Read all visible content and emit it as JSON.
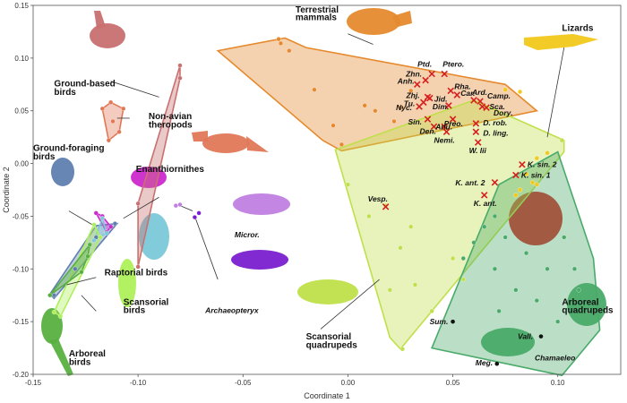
{
  "chart_data": {
    "type": "scatter",
    "xlabel": "Coordinate 1",
    "ylabel": "Coordinate 2",
    "xlim": [
      -0.15,
      0.13
    ],
    "ylim": [
      -0.2,
      0.15
    ],
    "xticks": [
      "-0.15",
      "-0.10",
      "-0.05",
      "0.00",
      "0.05",
      "0.10"
    ],
    "xtick_values": [
      -0.15,
      -0.1,
      -0.05,
      0.0,
      0.05,
      0.1
    ],
    "yticks": [
      "0.15",
      "0.10",
      "0.05",
      "0.00",
      "-0.05",
      "-0.10",
      "-0.15",
      "-0.20"
    ],
    "ytick_values": [
      0.15,
      0.1,
      0.05,
      0.0,
      -0.05,
      -0.1,
      -0.15,
      -0.2
    ],
    "groups": [
      {
        "name": "Terrestrial mammals",
        "color": "#e58a2e",
        "hull": [
          [
            -0.062,
            0.107
          ],
          [
            -0.03,
            0.119
          ],
          [
            -0.02,
            0.11
          ],
          [
            0.075,
            0.075
          ],
          [
            0.09,
            0.05
          ],
          [
            -0.003,
            0.012
          ],
          [
            -0.012,
            0.022
          ]
        ],
        "points": [
          [
            -0.033,
            0.118
          ],
          [
            -0.032,
            0.114
          ],
          [
            -0.028,
            0.107
          ],
          [
            -0.016,
            0.07
          ],
          [
            -0.007,
            0.036
          ],
          [
            -0.003,
            0.018
          ],
          [
            0.008,
            0.055
          ],
          [
            0.013,
            0.05
          ],
          [
            0.022,
            0.04
          ],
          [
            0.025,
            0.053
          ],
          [
            0.03,
            0.069
          ]
        ]
      },
      {
        "name": "Lizards",
        "color": "#f2c81a",
        "hull": [],
        "points": [
          [
            0.075,
            0.07
          ],
          [
            0.082,
            0.068
          ],
          [
            0.09,
            0.005
          ],
          [
            0.085,
            -0.01
          ],
          [
            0.088,
            -0.018
          ],
          [
            0.082,
            -0.025
          ],
          [
            0.08,
            -0.03
          ],
          [
            0.09,
            -0.02
          ],
          [
            0.095,
            0.01
          ]
        ]
      },
      {
        "name": "Scansorial quadrupeds",
        "color": "#bfe04a",
        "hull": [
          [
            -0.006,
            0.013
          ],
          [
            0.06,
            0.06
          ],
          [
            0.103,
            0.022
          ],
          [
            0.103,
            0.011
          ],
          [
            0.025,
            -0.176
          ],
          [
            0.02,
            -0.165
          ]
        ],
        "points": [
          [
            0.018,
            -0.04
          ],
          [
            0.0,
            -0.02
          ],
          [
            0.01,
            -0.05
          ],
          [
            0.025,
            -0.08
          ],
          [
            0.03,
            -0.06
          ],
          [
            0.02,
            -0.12
          ],
          [
            0.032,
            -0.115
          ],
          [
            0.05,
            -0.09
          ],
          [
            0.055,
            -0.11
          ],
          [
            0.04,
            -0.14
          ],
          [
            0.026,
            -0.176
          ],
          [
            0.102,
            0.022
          ]
        ]
      },
      {
        "name": "Arboreal quadrupeds",
        "color": "#4aaa6a",
        "hull": [
          [
            0.04,
            -0.175
          ],
          [
            0.102,
            -0.201
          ],
          [
            0.12,
            -0.158
          ],
          [
            0.117,
            -0.09
          ],
          [
            0.1,
            0.011
          ],
          [
            0.072,
            -0.02
          ]
        ],
        "points": [
          [
            0.055,
            -0.09
          ],
          [
            0.06,
            -0.075
          ],
          [
            0.07,
            -0.1
          ],
          [
            0.08,
            -0.12
          ],
          [
            0.072,
            -0.14
          ],
          [
            0.09,
            -0.13
          ],
          [
            0.1,
            -0.15
          ],
          [
            0.108,
            -0.1
          ],
          [
            0.11,
            -0.12
          ],
          [
            0.115,
            -0.14
          ],
          [
            0.085,
            -0.085
          ],
          [
            0.07,
            -0.05
          ],
          [
            0.065,
            -0.06
          ],
          [
            0.075,
            -0.07
          ],
          [
            0.095,
            -0.1
          ],
          [
            0.103,
            -0.07
          ]
        ]
      },
      {
        "name": "Ground-based birds",
        "color": "#c97070",
        "hull": [
          [
            -0.1,
            -0.098
          ],
          [
            -0.1,
            -0.038
          ],
          [
            -0.08,
            0.093
          ],
          [
            -0.08,
            0.081
          ]
        ],
        "points": [
          [
            -0.1,
            -0.098
          ],
          [
            -0.1,
            -0.038
          ],
          [
            -0.08,
            0.093
          ],
          [
            -0.08,
            0.081
          ]
        ]
      },
      {
        "name": "Non-avian theropods",
        "color": "#e07858",
        "hull": [
          [
            -0.117,
            0.052
          ],
          [
            -0.113,
            0.058
          ],
          [
            -0.107,
            0.052
          ],
          [
            -0.109,
            0.03
          ],
          [
            -0.114,
            0.022
          ]
        ],
        "points": [
          [
            -0.117,
            0.052
          ],
          [
            -0.113,
            0.058
          ],
          [
            -0.107,
            0.052
          ],
          [
            -0.109,
            0.03
          ],
          [
            -0.114,
            0.022
          ],
          [
            -0.112,
            0.04
          ]
        ]
      },
      {
        "name": "Ground-foraging birds",
        "color": "#5f7fb0",
        "hull": [
          [
            -0.14,
            -0.128
          ],
          [
            -0.142,
            -0.124
          ],
          [
            -0.12,
            -0.059
          ],
          [
            -0.11,
            -0.057
          ]
        ],
        "points": [
          [
            -0.14,
            -0.125
          ],
          [
            -0.13,
            -0.1
          ],
          [
            -0.12,
            -0.07
          ],
          [
            -0.111,
            -0.057
          ]
        ]
      },
      {
        "name": "Enanthiornithes",
        "color": "#cc29cc",
        "hull": [
          [
            -0.12,
            -0.047
          ],
          [
            -0.117,
            -0.05
          ],
          [
            -0.113,
            -0.06
          ],
          [
            -0.115,
            -0.065
          ]
        ],
        "points": [
          [
            -0.12,
            -0.047
          ],
          [
            -0.117,
            -0.05
          ],
          [
            -0.113,
            -0.06
          ],
          [
            -0.115,
            -0.065
          ]
        ]
      },
      {
        "name": "Raptorial birds",
        "color": "#7ac8d8",
        "hull": [
          [
            -0.117,
            -0.052
          ],
          [
            -0.115,
            -0.066
          ],
          [
            -0.121,
            -0.073
          ]
        ],
        "points": [
          [
            -0.117,
            -0.052
          ],
          [
            -0.115,
            -0.066
          ],
          [
            -0.121,
            -0.073
          ]
        ]
      },
      {
        "name": "Scansorial birds",
        "color": "#aef05a",
        "hull": [
          [
            -0.14,
            -0.141
          ],
          [
            -0.137,
            -0.145
          ],
          [
            -0.118,
            -0.07
          ],
          [
            -0.121,
            -0.058
          ]
        ],
        "points": [
          [
            -0.14,
            -0.141
          ],
          [
            -0.137,
            -0.145
          ],
          [
            -0.118,
            -0.07
          ],
          [
            -0.121,
            -0.058
          ]
        ]
      },
      {
        "name": "Arboreal birds",
        "color": "#58b040",
        "hull": [
          [
            -0.142,
            -0.125
          ],
          [
            -0.127,
            -0.103
          ],
          [
            -0.124,
            -0.088
          ],
          [
            -0.123,
            -0.077
          ]
        ],
        "points": [
          [
            -0.142,
            -0.125
          ],
          [
            -0.127,
            -0.103
          ],
          [
            -0.124,
            -0.088
          ],
          [
            -0.123,
            -0.077
          ]
        ]
      },
      {
        "name": "Microraptor",
        "color": "#c080e0",
        "hull": [],
        "points": [
          [
            -0.082,
            -0.04
          ],
          [
            -0.08,
            -0.039
          ]
        ]
      },
      {
        "name": "Archaeopteryx",
        "color": "#7a1fcf",
        "hull": [],
        "points": [
          [
            -0.071,
            -0.047
          ],
          [
            -0.073,
            -0.051
          ]
        ]
      }
    ],
    "taxa_x": [
      {
        "label": "Ptd.",
        "x": 0.04,
        "y": 0.085
      },
      {
        "label": "Ptero.",
        "x": 0.046,
        "y": 0.085
      },
      {
        "label": "Zhn.",
        "x": 0.037,
        "y": 0.079
      },
      {
        "label": "Anh.",
        "x": 0.033,
        "y": 0.075
      },
      {
        "label": "Rha.",
        "x": 0.049,
        "y": 0.069
      },
      {
        "label": "Car.",
        "x": 0.052,
        "y": 0.065
      },
      {
        "label": "Zhj.",
        "x": 0.038,
        "y": 0.063
      },
      {
        "label": "Jid.",
        "x": 0.039,
        "y": 0.062
      },
      {
        "label": "Tu.",
        "x": 0.036,
        "y": 0.058
      },
      {
        "label": "Nyc.",
        "x": 0.034,
        "y": 0.054
      },
      {
        "label": "Ard.",
        "x": 0.06,
        "y": 0.06
      },
      {
        "label": "Dim.",
        "x": 0.048,
        "y": 0.055
      },
      {
        "label": "Camp.",
        "x": 0.063,
        "y": 0.059
      },
      {
        "label": "Sca.",
        "x": 0.064,
        "y": 0.054
      },
      {
        "label": "Dory.",
        "x": 0.066,
        "y": 0.053
      },
      {
        "label": "Sin.",
        "x": 0.038,
        "y": 0.042
      },
      {
        "label": "Preo.",
        "x": 0.05,
        "y": 0.042
      },
      {
        "label": "Den.",
        "x": 0.041,
        "y": 0.035
      },
      {
        "label": "Anu.",
        "x": 0.046,
        "y": 0.035
      },
      {
        "label": "Nemi.",
        "x": 0.047,
        "y": 0.03
      },
      {
        "label": "D. rob.",
        "x": 0.061,
        "y": 0.038
      },
      {
        "label": "D. ling.",
        "x": 0.061,
        "y": 0.03
      },
      {
        "label": "W. lii",
        "x": 0.062,
        "y": 0.02
      },
      {
        "label": "K. sin. 2",
        "x": 0.083,
        "y": -0.001
      },
      {
        "label": "K. sin. 1",
        "x": 0.08,
        "y": -0.011
      },
      {
        "label": "K. ant. 2",
        "x": 0.07,
        "y": -0.018
      },
      {
        "label": "K. ant.",
        "x": 0.065,
        "y": -0.03
      },
      {
        "label": "Vesp.",
        "x": 0.018,
        "y": -0.041
      }
    ],
    "taxa_dot": [
      {
        "label": "Sum.",
        "x": 0.05,
        "y": -0.15
      },
      {
        "label": "Vall.",
        "x": 0.092,
        "y": -0.164
      },
      {
        "label": "Meg.",
        "x": 0.071,
        "y": -0.19
      }
    ],
    "group_labels": [
      {
        "text": "Terrestrial",
        "x": -0.025,
        "y": 0.143
      },
      {
        "text": "mammals",
        "x": -0.025,
        "y": 0.136
      },
      {
        "text": "Lizards",
        "x": 0.102,
        "y": 0.126
      },
      {
        "text": "Ground-based",
        "x": -0.14,
        "y": 0.073
      },
      {
        "text": "birds",
        "x": -0.14,
        "y": 0.065
      },
      {
        "text": "Non-avian",
        "x": -0.095,
        "y": 0.042
      },
      {
        "text": "theropods",
        "x": -0.095,
        "y": 0.034
      },
      {
        "text": "Ground-foraging",
        "x": -0.15,
        "y": 0.012
      },
      {
        "text": "birds",
        "x": -0.15,
        "y": 0.004
      },
      {
        "text": "Enanthiornithes",
        "x": -0.101,
        "y": -0.008
      },
      {
        "text": "Raptorial birds",
        "x": -0.116,
        "y": -0.106
      },
      {
        "text": "Scansorial",
        "x": -0.107,
        "y": -0.134
      },
      {
        "text": "birds",
        "x": -0.107,
        "y": -0.142
      },
      {
        "text": "Arboreal",
        "x": -0.133,
        "y": -0.183
      },
      {
        "text": "birds",
        "x": -0.133,
        "y": -0.191
      },
      {
        "text": "Scansorial",
        "x": -0.02,
        "y": -0.167
      },
      {
        "text": "quadrupeds",
        "x": -0.02,
        "y": -0.175
      },
      {
        "text": "Arboreal",
        "x": 0.102,
        "y": -0.134
      },
      {
        "text": "quadrupeds",
        "x": 0.102,
        "y": -0.142
      }
    ],
    "specimen_labels": [
      {
        "text": "Micror.",
        "x": -0.054,
        "y": -0.07
      },
      {
        "text": "Archaeopteryx",
        "x": -0.068,
        "y": -0.142
      },
      {
        "text": "Chamaeleo",
        "x": 0.089,
        "y": -0.187
      }
    ],
    "colors": {
      "taxa_marker": "#d61f1f",
      "taxa_dot": "#111111",
      "axis": "#555555"
    }
  }
}
